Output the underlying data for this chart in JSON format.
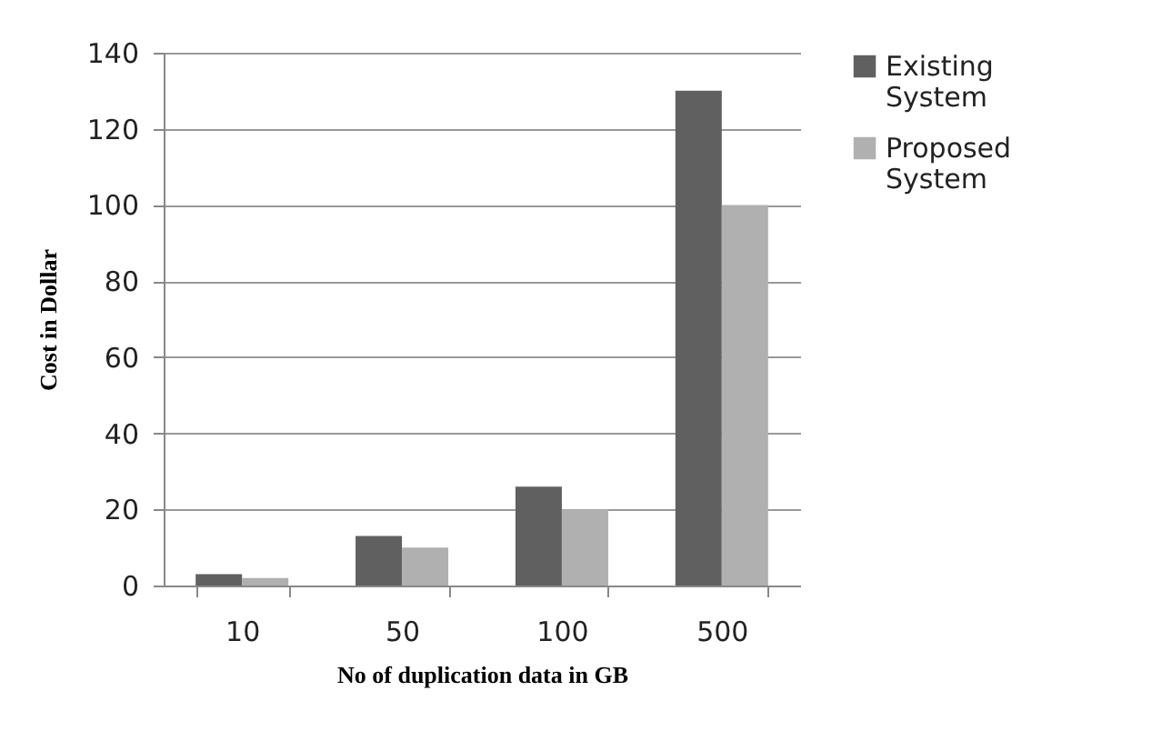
{
  "chart_data": {
    "type": "bar",
    "xlabel": "No of duplication data in GB",
    "ylabel": "Cost in Dollar",
    "categories": [
      "10",
      "50",
      "100",
      "500"
    ],
    "series": [
      {
        "name": "Existing System",
        "color": "#606060",
        "values": [
          3,
          13,
          26,
          130
        ]
      },
      {
        "name": "Proposed System",
        "color": "#b0b0b0",
        "values": [
          2,
          10,
          20,
          100
        ]
      }
    ],
    "ylim": [
      0,
      140
    ],
    "yticks": [
      0,
      20,
      40,
      60,
      80,
      100,
      120,
      140
    ],
    "grid": "y",
    "legend": "right"
  }
}
